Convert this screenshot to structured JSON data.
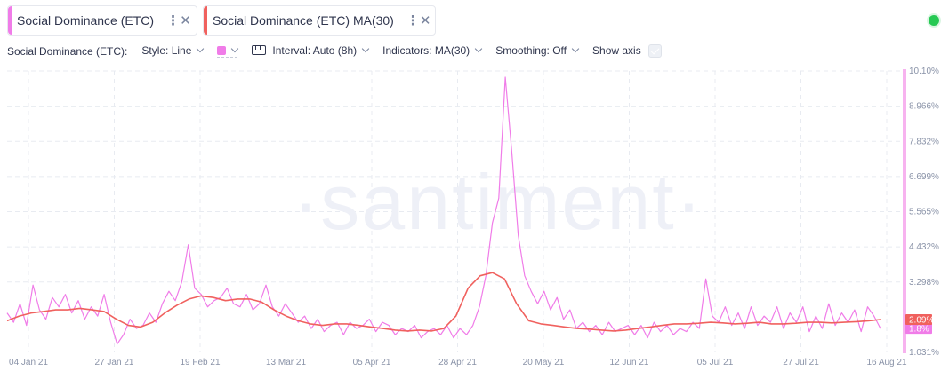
{
  "tabs": [
    {
      "label": "Social Dominance (ETC)",
      "accent": "#f07ce8"
    },
    {
      "label": "Social Dominance (ETC) MA(30)",
      "accent": "#f0615e"
    }
  ],
  "tab_menu_glyph": "⋮",
  "tab_close_glyph": "✕",
  "settings": {
    "title": "Social Dominance (ETC):",
    "style": "Style: Line",
    "color": "#f07ce8",
    "interval": "Interval: Auto (8h)",
    "indicators": "Indicators: MA(30)",
    "smoothing": "Smoothing: Off",
    "show_axis": "Show axis"
  },
  "status_color": "#26c953",
  "watermark": "·santiment·",
  "chart_data": {
    "type": "line",
    "x_tick_labels": [
      "04 Jan 21",
      "27 Jan 21",
      "19 Feb 21",
      "13 Mar 21",
      "05 Apr 21",
      "28 Apr 21",
      "20 May 21",
      "12 Jun 21",
      "05 Jul 21",
      "27 Jul 21",
      "16 Aug 21"
    ],
    "y_tick_labels": [
      "10.10%",
      "8.966%",
      "7.832%",
      "6.699%",
      "5.565%",
      "4.432%",
      "3.298%",
      "1.031%"
    ],
    "ylim": [
      1.031,
      10.1
    ],
    "y_unit": "%",
    "grid": true,
    "series": [
      {
        "name": "Social Dominance (ETC)",
        "color": "#f07ce8",
        "last_value_label": "1.8%",
        "values": [
          2.3,
          2.0,
          2.6,
          1.9,
          3.2,
          2.4,
          2.1,
          2.8,
          2.5,
          2.9,
          2.3,
          2.7,
          2.1,
          2.5,
          2.2,
          2.9,
          2.0,
          1.3,
          1.6,
          2.1,
          1.8,
          1.9,
          2.3,
          2.0,
          2.6,
          3.0,
          2.7,
          3.3,
          4.5,
          3.1,
          2.9,
          2.5,
          2.7,
          2.8,
          3.1,
          2.6,
          2.5,
          2.9,
          2.4,
          2.6,
          3.2,
          2.5,
          2.2,
          2.6,
          2.3,
          2.0,
          2.2,
          1.8,
          2.1,
          1.7,
          1.9,
          2.0,
          1.6,
          2.0,
          1.8,
          1.9,
          2.1,
          1.7,
          2.0,
          1.9,
          1.6,
          1.8,
          1.7,
          1.9,
          1.5,
          1.7,
          1.8,
          1.6,
          1.9,
          1.5,
          1.8,
          1.6,
          1.9,
          2.5,
          3.5,
          5.2,
          6.0,
          9.9,
          7.5,
          4.8,
          3.5,
          3.0,
          2.6,
          3.0,
          2.4,
          2.8,
          2.1,
          2.4,
          1.8,
          2.0,
          1.7,
          1.9,
          1.6,
          2.0,
          1.7,
          1.8,
          1.9,
          1.6,
          1.9,
          1.5,
          2.0,
          1.7,
          1.9,
          1.6,
          1.8,
          1.7,
          2.0,
          1.8,
          3.4,
          2.2,
          2.0,
          2.5,
          1.9,
          2.3,
          1.8,
          2.5,
          1.9,
          2.2,
          2.0,
          2.5,
          1.8,
          2.3,
          2.0,
          2.5,
          1.7,
          2.2,
          1.8,
          2.6,
          1.9,
          2.3,
          2.0,
          2.4,
          1.7,
          2.5,
          2.2,
          1.8
        ]
      },
      {
        "name": "Social Dominance (ETC) MA(30)",
        "color": "#f0615e",
        "last_value_label": "2.09%",
        "values": [
          2.05,
          2.2,
          2.3,
          2.35,
          2.4,
          2.4,
          2.45,
          2.4,
          2.35,
          2.1,
          1.9,
          1.85,
          2.0,
          2.3,
          2.55,
          2.75,
          2.85,
          2.8,
          2.7,
          2.75,
          2.75,
          2.65,
          2.4,
          2.2,
          2.05,
          1.95,
          1.9,
          1.95,
          1.95,
          1.9,
          1.85,
          1.8,
          1.75,
          1.72,
          1.75,
          1.72,
          1.8,
          2.2,
          3.1,
          3.5,
          3.6,
          3.4,
          2.6,
          2.05,
          1.95,
          1.9,
          1.85,
          1.8,
          1.78,
          1.75,
          1.72,
          1.75,
          1.8,
          1.85,
          1.9,
          1.95,
          1.95,
          1.97,
          2.0,
          1.98,
          1.95,
          1.97,
          2.0,
          1.95,
          1.95,
          1.97,
          2.0,
          2.0,
          1.98,
          2.0,
          2.02,
          2.05,
          2.09
        ]
      }
    ]
  }
}
